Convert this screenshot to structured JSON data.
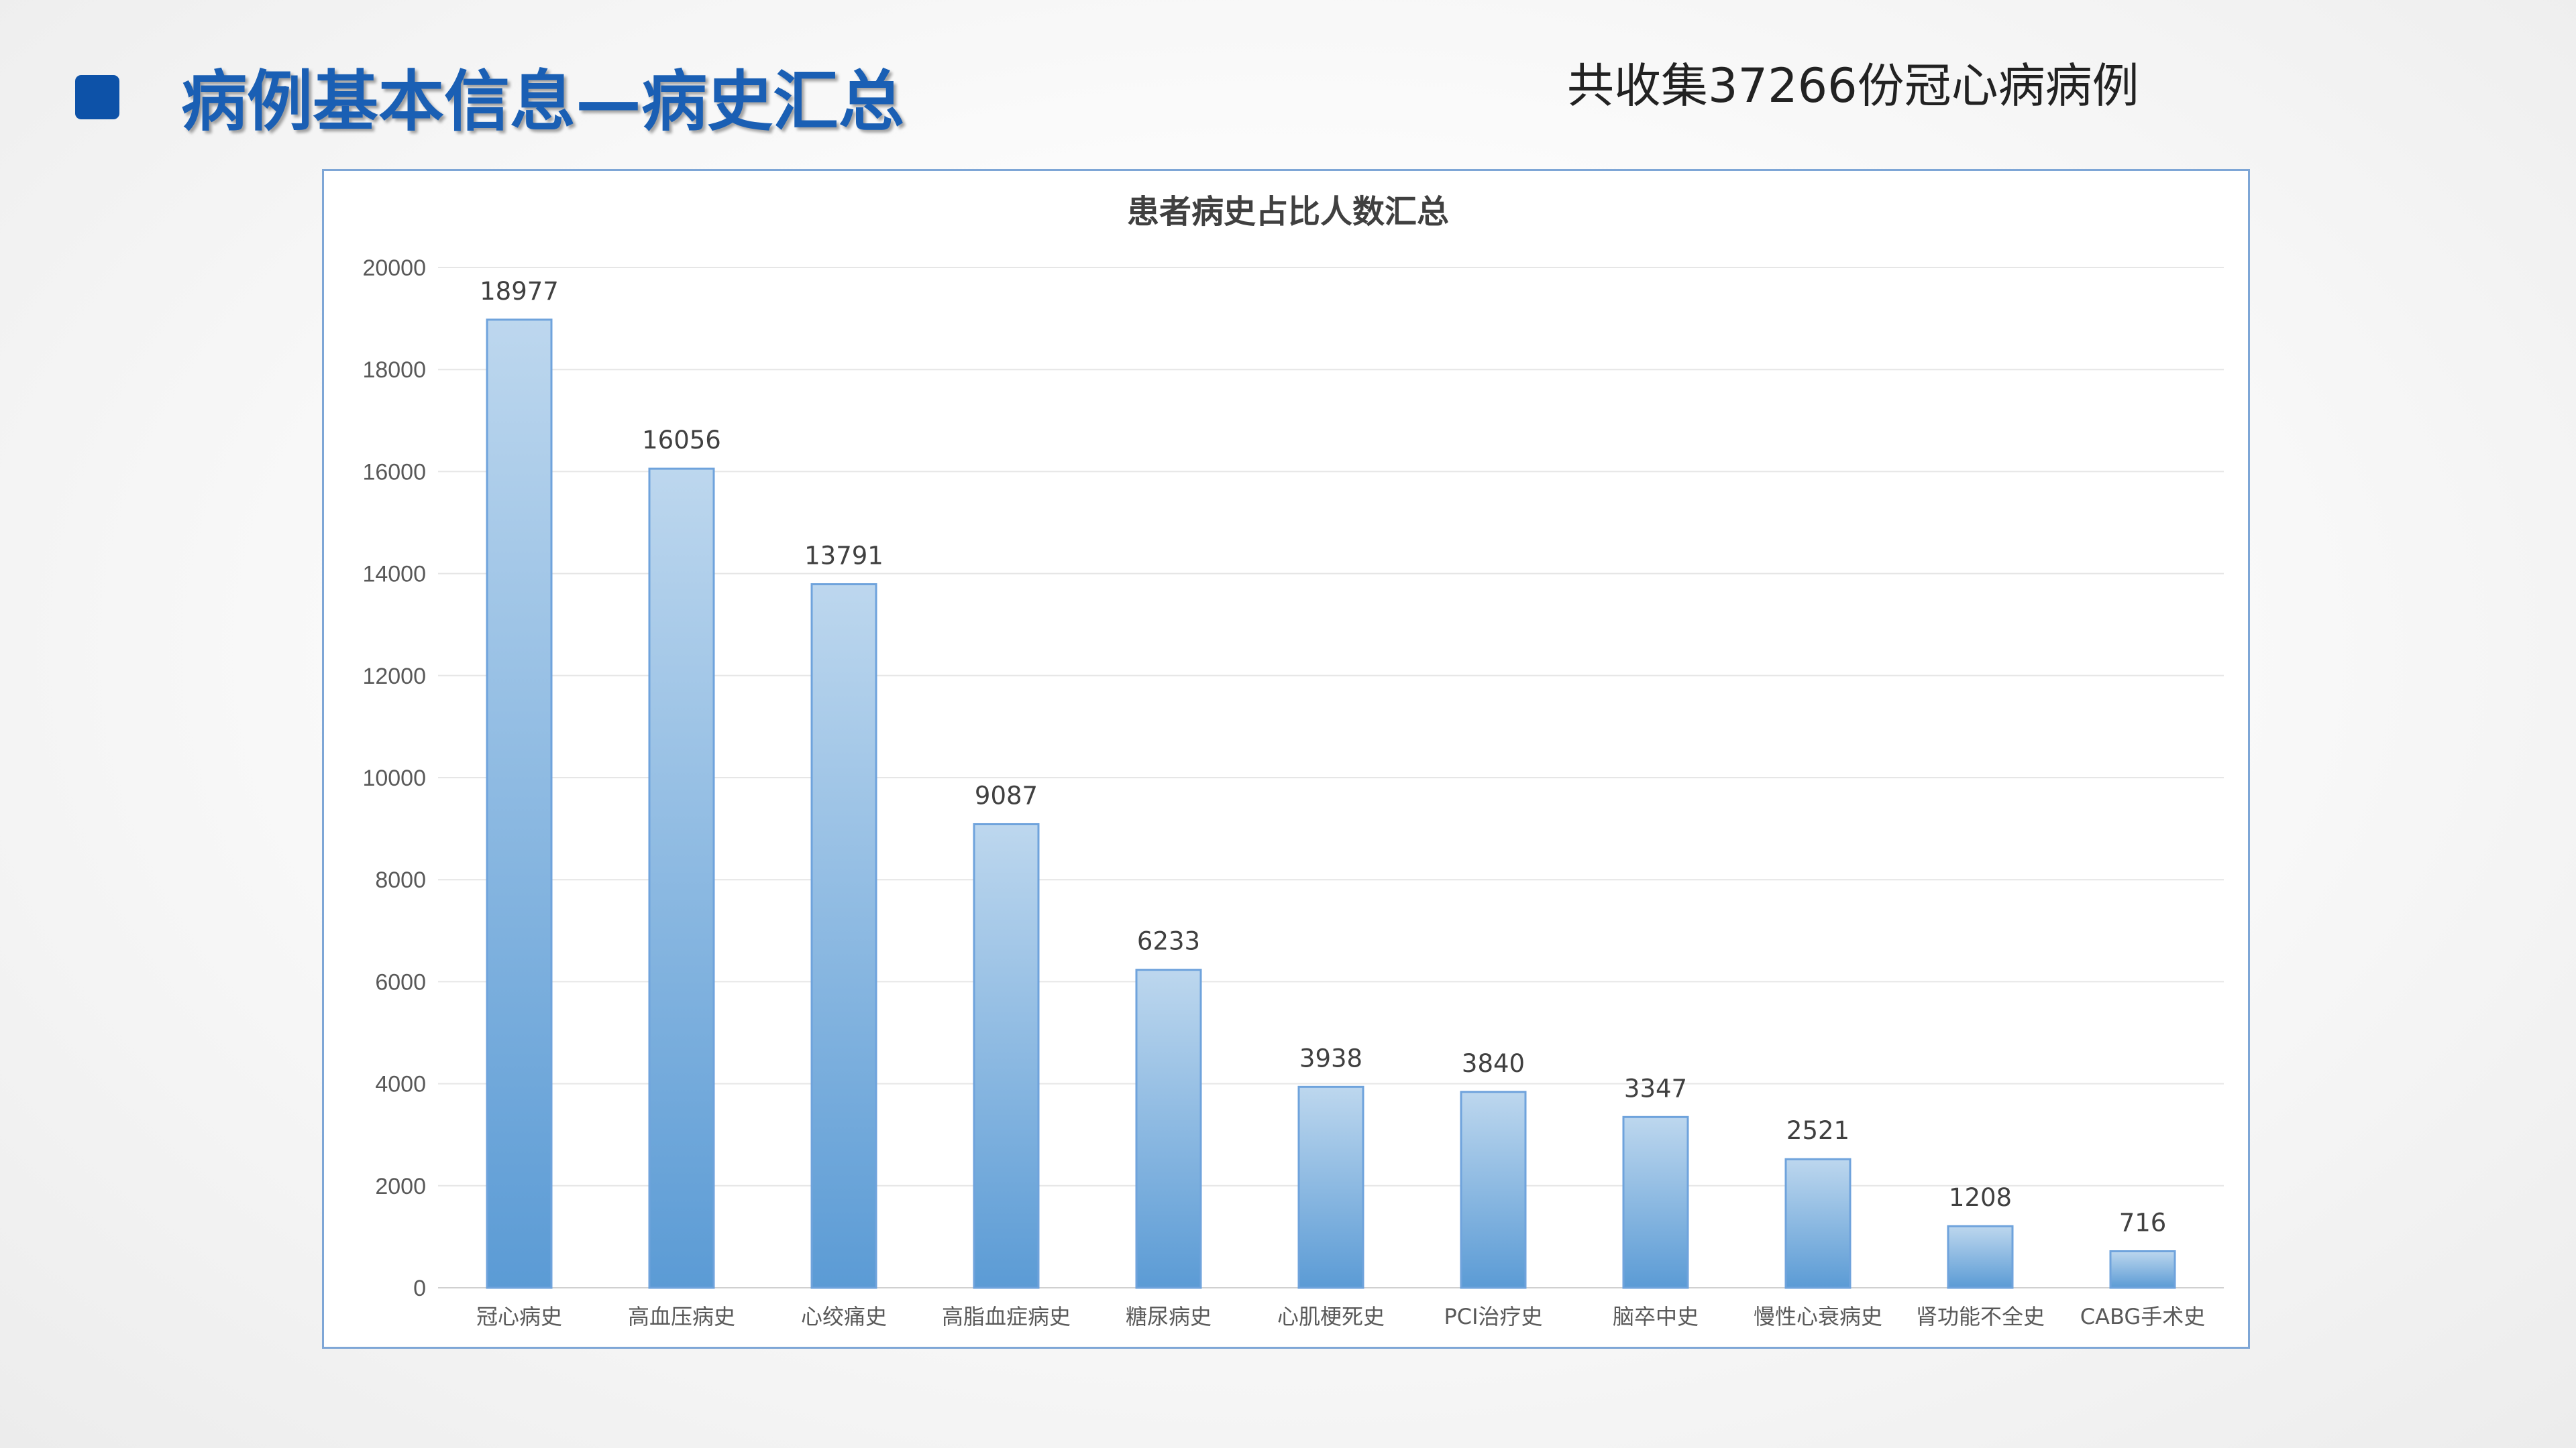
{
  "header": {
    "title": "病例基本信息—病史汇总",
    "note": "共收集37266份冠心病病例"
  },
  "colors": {
    "bullet": "#0d52a8",
    "title": "#1a5fb4",
    "bar_top": "#bdd7ee",
    "bar_bottom": "#5b9bd5",
    "bar_border": "#6fa3dc",
    "frame_border": "#7ea6d6"
  },
  "chart_data": {
    "type": "bar",
    "title": "患者病史占比人数汇总",
    "xlabel": "",
    "ylabel": "",
    "ylim": [
      0,
      20000
    ],
    "yticks": [
      0,
      2000,
      4000,
      6000,
      8000,
      10000,
      12000,
      14000,
      16000,
      18000,
      20000
    ],
    "grid": true,
    "legend": "none",
    "data_labels": true,
    "categories": [
      "冠心病史",
      "高血压病史",
      "心绞痛史",
      "高脂血症病史",
      "糖尿病史",
      "心肌梗死史",
      "PCI治疗史",
      "脑卒中史",
      "慢性心衰病史",
      "肾功能不全史",
      "CABG手术史"
    ],
    "values": [
      18977,
      16056,
      13791,
      9087,
      6233,
      3938,
      3840,
      3347,
      2521,
      1208,
      716
    ]
  }
}
